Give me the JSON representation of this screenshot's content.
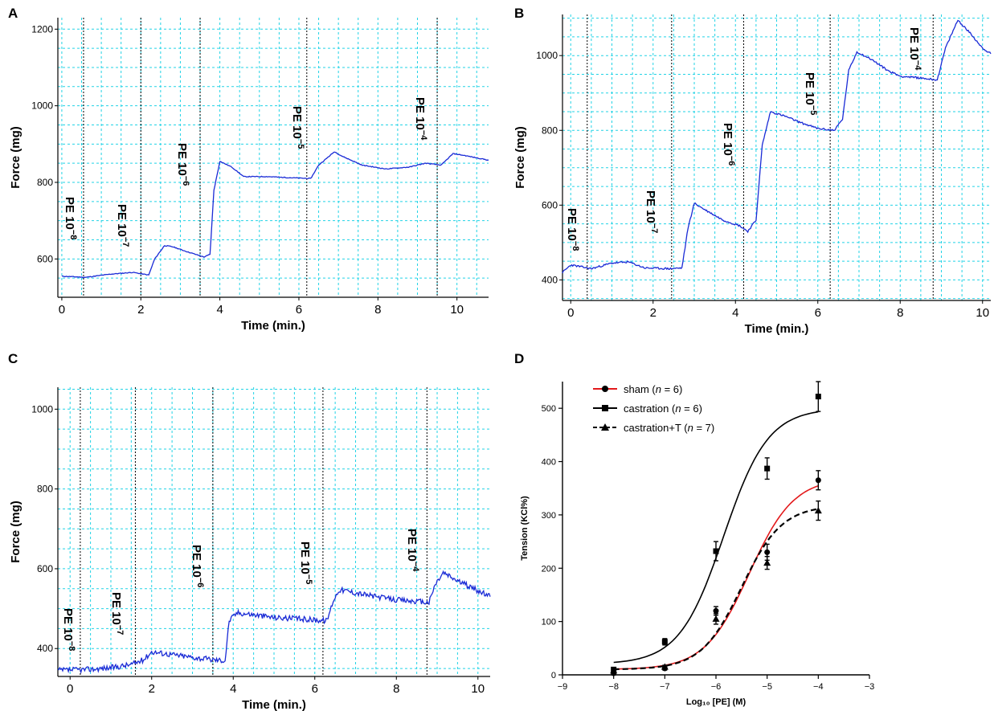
{
  "chart_data": [
    {
      "panel": "A",
      "type": "line",
      "xlabel": "Time (min.)",
      "ylabel": "Force (mg)",
      "xticks": [
        0,
        2,
        4,
        6,
        8,
        10
      ],
      "yticks": [
        600,
        800,
        1000,
        1200
      ],
      "xlim": [
        -0.1,
        10.8
      ],
      "ylim": [
        500,
        1230
      ],
      "grid": true,
      "line_color": "#1a2bd6",
      "grid_color": "#22d3e6",
      "markers": [
        {
          "x": 0.55,
          "base": "PE 10",
          "exp": "−8"
        },
        {
          "x": 2.0,
          "base": "PE 10",
          "exp": "−7"
        },
        {
          "x": 3.5,
          "base": "PE 10",
          "exp": "−6"
        },
        {
          "x": 6.2,
          "base": "PE 10",
          "exp": "−5"
        },
        {
          "x": 9.5,
          "base": "PE 10",
          "exp": "−4"
        }
      ],
      "trace": [
        [
          0,
          555
        ],
        [
          0.6,
          552
        ],
        [
          1.2,
          560
        ],
        [
          1.8,
          565
        ],
        [
          2.2,
          558
        ],
        [
          2.35,
          600
        ],
        [
          2.6,
          635
        ],
        [
          2.8,
          632
        ],
        [
          3.2,
          618
        ],
        [
          3.6,
          605
        ],
        [
          3.75,
          612
        ],
        [
          3.85,
          780
        ],
        [
          4.0,
          855
        ],
        [
          4.3,
          840
        ],
        [
          4.6,
          815
        ],
        [
          5.2,
          815
        ],
        [
          5.8,
          812
        ],
        [
          6.3,
          810
        ],
        [
          6.5,
          845
        ],
        [
          6.9,
          880
        ],
        [
          7.1,
          868
        ],
        [
          7.6,
          845
        ],
        [
          8.2,
          835
        ],
        [
          8.8,
          840
        ],
        [
          9.2,
          850
        ],
        [
          9.6,
          845
        ],
        [
          9.9,
          875
        ],
        [
          10.2,
          870
        ],
        [
          10.8,
          858
        ]
      ]
    },
    {
      "panel": "B",
      "type": "line",
      "xlabel": "Time (min.)",
      "ylabel": "Force (mg)",
      "xticks": [
        0,
        2,
        4,
        6,
        8,
        10
      ],
      "yticks": [
        400,
        600,
        800,
        1000
      ],
      "xlim": [
        -0.2,
        10.2
      ],
      "ylim": [
        345,
        1110
      ],
      "grid": true,
      "line_color": "#1a2bd6",
      "grid_color": "#22d3e6",
      "markers": [
        {
          "x": 0.4,
          "base": "PE 10",
          "exp": "−8"
        },
        {
          "x": 2.45,
          "base": "PE 10",
          "exp": "−7"
        },
        {
          "x": 4.2,
          "base": "PE 10",
          "exp": "−6"
        },
        {
          "x": 6.3,
          "base": "PE 10",
          "exp": "−5"
        },
        {
          "x": 8.8,
          "base": "PE 10",
          "exp": "−4"
        }
      ],
      "trace": [
        [
          -0.2,
          420
        ],
        [
          0.0,
          440
        ],
        [
          0.5,
          430
        ],
        [
          1.0,
          445
        ],
        [
          1.4,
          448
        ],
        [
          1.8,
          432
        ],
        [
          2.4,
          430
        ],
        [
          2.7,
          432
        ],
        [
          2.85,
          540
        ],
        [
          3.0,
          605
        ],
        [
          3.3,
          585
        ],
        [
          3.7,
          560
        ],
        [
          4.1,
          545
        ],
        [
          4.3,
          530
        ],
        [
          4.5,
          560
        ],
        [
          4.65,
          760
        ],
        [
          4.85,
          850
        ],
        [
          5.2,
          838
        ],
        [
          5.6,
          820
        ],
        [
          6.0,
          805
        ],
        [
          6.4,
          800
        ],
        [
          6.6,
          830
        ],
        [
          6.75,
          960
        ],
        [
          6.95,
          1010
        ],
        [
          7.3,
          990
        ],
        [
          7.7,
          960
        ],
        [
          8.0,
          945
        ],
        [
          8.5,
          940
        ],
        [
          8.9,
          935
        ],
        [
          9.1,
          1020
        ],
        [
          9.4,
          1095
        ],
        [
          9.7,
          1060
        ],
        [
          10.0,
          1020
        ],
        [
          10.2,
          1005
        ]
      ]
    },
    {
      "panel": "C",
      "type": "line",
      "xlabel": "Time (min.)",
      "ylabel": "Force (mg)",
      "xticks": [
        0,
        2,
        4,
        6,
        8,
        10
      ],
      "yticks": [
        400,
        600,
        800,
        1000
      ],
      "xlim": [
        -0.3,
        10.3
      ],
      "ylim": [
        330,
        1055
      ],
      "grid": true,
      "line_color": "#1a2bd6",
      "grid_color": "#22d3e6",
      "markers": [
        {
          "x": 0.25,
          "base": "PE 10",
          "exp": "−8"
        },
        {
          "x": 1.6,
          "base": "PE 10",
          "exp": "−7"
        },
        {
          "x": 3.5,
          "base": "PE 10",
          "exp": "−6"
        },
        {
          "x": 6.2,
          "base": "PE 10",
          "exp": "−5"
        },
        {
          "x": 8.75,
          "base": "PE 10",
          "exp": "−4"
        }
      ],
      "trace": [
        [
          -0.3,
          345
        ],
        [
          0.5,
          348
        ],
        [
          1.0,
          352
        ],
        [
          1.5,
          360
        ],
        [
          1.8,
          372
        ],
        [
          2.0,
          392
        ],
        [
          2.5,
          385
        ],
        [
          3.0,
          378
        ],
        [
          3.5,
          372
        ],
        [
          3.8,
          370
        ],
        [
          3.9,
          470
        ],
        [
          4.1,
          490
        ],
        [
          4.5,
          485
        ],
        [
          5.0,
          478
        ],
        [
          5.5,
          475
        ],
        [
          6.0,
          472
        ],
        [
          6.3,
          470
        ],
        [
          6.45,
          520
        ],
        [
          6.6,
          548
        ],
        [
          7.0,
          540
        ],
        [
          7.5,
          530
        ],
        [
          8.0,
          522
        ],
        [
          8.5,
          518
        ],
        [
          8.8,
          515
        ],
        [
          8.95,
          560
        ],
        [
          9.15,
          590
        ],
        [
          9.5,
          570
        ],
        [
          10.0,
          545
        ],
        [
          10.3,
          530
        ]
      ]
    },
    {
      "panel": "D",
      "type": "scatter",
      "xlabel": "Log₁₀ [PE] (M)",
      "ylabel": "Tension (KCl%)",
      "xticks": [
        -9,
        -8,
        -7,
        -6,
        -5,
        -4,
        -3
      ],
      "yticks": [
        0,
        100,
        200,
        300,
        400,
        500
      ],
      "xlim": [
        -9,
        -3
      ],
      "ylim": [
        0,
        550
      ],
      "legend_position": "top-left",
      "series": [
        {
          "name": "sham",
          "n_label": "n",
          "n_value": " = 6)",
          "marker": "circle",
          "color": "#e31a1c",
          "dash": "",
          "x": [
            -8,
            -7,
            -6,
            -5,
            -4
          ],
          "y": [
            3,
            12,
            120,
            230,
            365
          ],
          "err": [
            3,
            3,
            8,
            15,
            18
          ],
          "fit": {
            "bottom": 10,
            "top": 370,
            "logEC50": -5.35,
            "hill": 1.0
          }
        },
        {
          "name": "castration",
          "n_label": "n",
          "n_value": " = 6)",
          "marker": "square",
          "color": "#000000",
          "dash": "",
          "x": [
            -8,
            -7,
            -6,
            -5,
            -4
          ],
          "y": [
            10,
            62,
            232,
            387,
            522
          ],
          "err": [
            4,
            6,
            18,
            20,
            28
          ],
          "fit": {
            "bottom": 20,
            "top": 500,
            "logEC50": -5.85,
            "hill": 1.0
          }
        },
        {
          "name": "castration+T",
          "n_label": "n",
          "n_value": " = 7)",
          "marker": "triangle",
          "color": "#000000",
          "dash": "7,4",
          "x": [
            -8,
            -7,
            -6,
            -5,
            -4
          ],
          "y": [
            8,
            15,
            105,
            210,
            308
          ],
          "err": [
            3,
            3,
            10,
            12,
            18
          ],
          "fit": {
            "bottom": 10,
            "top": 318,
            "logEC50": -5.5,
            "hill": 1.1
          }
        }
      ]
    }
  ],
  "panel_letters": {
    "a": "A",
    "b": "B",
    "c": "C",
    "d": "D"
  }
}
